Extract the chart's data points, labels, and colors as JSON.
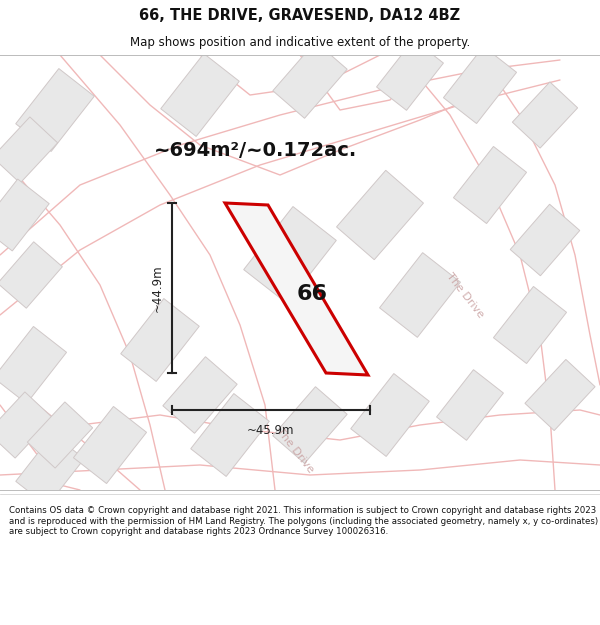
{
  "title": "66, THE DRIVE, GRAVESEND, DA12 4BZ",
  "subtitle": "Map shows position and indicative extent of the property.",
  "area_text": "~694m²/~0.172ac.",
  "label_66": "66",
  "dim_width": "~45.9m",
  "dim_height": "~44.9m",
  "road_label_1": "The Drive",
  "road_label_2": "The Drive",
  "footer": "Contains OS data © Crown copyright and database right 2021. This information is subject to Crown copyright and database rights 2023 and is reproduced with the permission of HM Land Registry. The polygons (including the associated geometry, namely x, y co-ordinates) are subject to Crown copyright and database rights 2023 Ordnance Survey 100026316.",
  "bg_color": "#f9f8f7",
  "map_bg": "#f9f8f7",
  "road_color": "#f0b8b8",
  "building_fill": "#e8e8e8",
  "building_edge": "#d0c8c8",
  "highlight_fill": "#f5f5f5",
  "highlight_edge": "#cc0000",
  "dim_color": "#222222",
  "text_color": "#111111",
  "footer_color": "#111111"
}
